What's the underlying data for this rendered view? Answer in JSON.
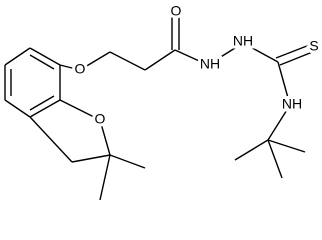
{
  "atoms": [
    {
      "label": "O"
    },
    {
      "label": "O"
    },
    {
      "label": "NH"
    },
    {
      "label": "NH"
    },
    {
      "label": "S"
    },
    {
      "label": "NH"
    },
    {
      "label": "O"
    }
  ]
}
